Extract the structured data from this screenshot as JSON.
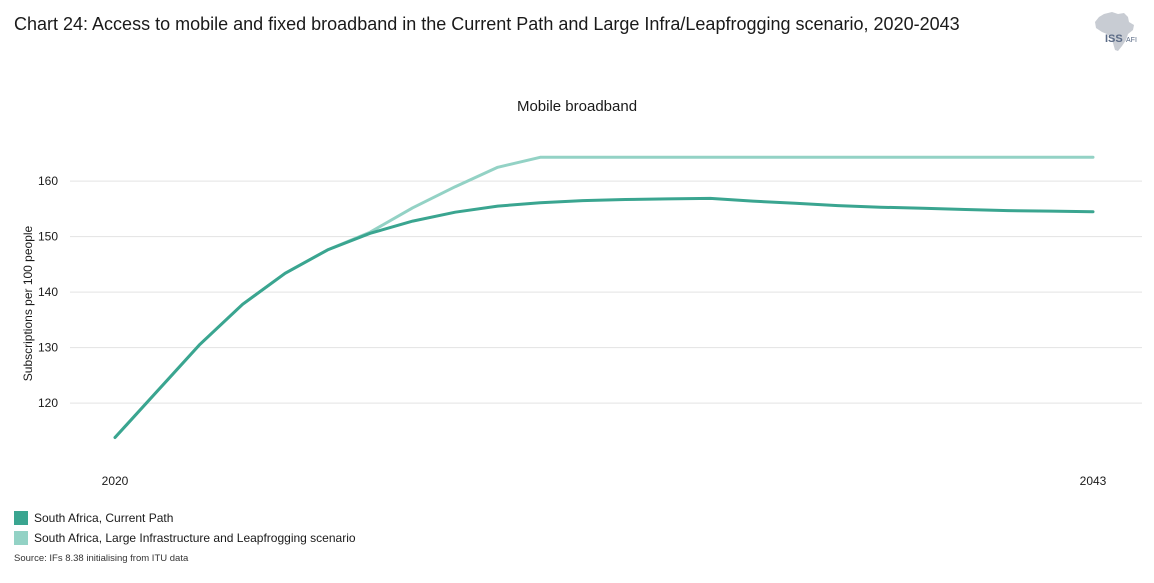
{
  "header": {
    "title": "Chart 24: Access to mobile and fixed broadband in the Current Path and Large Infra/Leapfrogging scenario, 2020-2043"
  },
  "logo": {
    "icon": "africa-map-icon",
    "text_main": "ISS",
    "text_sub": "AFI",
    "color_map": "#c8ccd3",
    "color_text": "#5b6b86"
  },
  "footer": {
    "source": "Source: IFs 8.38 initialising from ITU data"
  },
  "chart_data": {
    "type": "line",
    "title": "Mobile broadband",
    "xlabel": "",
    "ylabel": "Subscriptions per 100 people",
    "x_tick_labels": [
      "2020",
      "2043"
    ],
    "y_ticks": [
      120,
      130,
      140,
      150,
      160
    ],
    "xlim": [
      2020,
      2043
    ],
    "ylim": [
      111,
      168.5
    ],
    "grid": "horizontal",
    "legend_position": "bottom-left",
    "series": [
      {
        "name": "South Africa, Current Path",
        "color": "#3aa590",
        "x": [
          2020,
          2021,
          2022,
          2023,
          2024,
          2025,
          2026,
          2027,
          2028,
          2029,
          2030,
          2031,
          2032,
          2033,
          2034,
          2035,
          2036,
          2037,
          2038,
          2039,
          2040,
          2041,
          2042,
          2043
        ],
        "values": [
          113.8,
          122.2,
          130.6,
          137.8,
          143.4,
          147.6,
          150.6,
          152.8,
          154.4,
          155.5,
          156.1,
          156.5,
          156.7,
          156.8,
          156.9,
          156.4,
          156.0,
          155.6,
          155.3,
          155.1,
          154.9,
          154.7,
          154.6,
          154.5
        ]
      },
      {
        "name": "South Africa, Large Infrastructure and Leapfrogging scenario",
        "color": "#93d2c5",
        "x": [
          2020,
          2021,
          2022,
          2023,
          2024,
          2025,
          2026,
          2027,
          2028,
          2029,
          2030,
          2031,
          2032,
          2033,
          2034,
          2035,
          2036,
          2037,
          2038,
          2039,
          2040,
          2041,
          2042,
          2043
        ],
        "values": [
          113.8,
          122.2,
          130.6,
          137.8,
          143.4,
          147.6,
          150.8,
          155.2,
          159.0,
          162.5,
          164.3,
          164.3,
          164.3,
          164.3,
          164.3,
          164.3,
          164.3,
          164.3,
          164.3,
          164.3,
          164.3,
          164.3,
          164.3,
          164.3
        ]
      }
    ]
  }
}
